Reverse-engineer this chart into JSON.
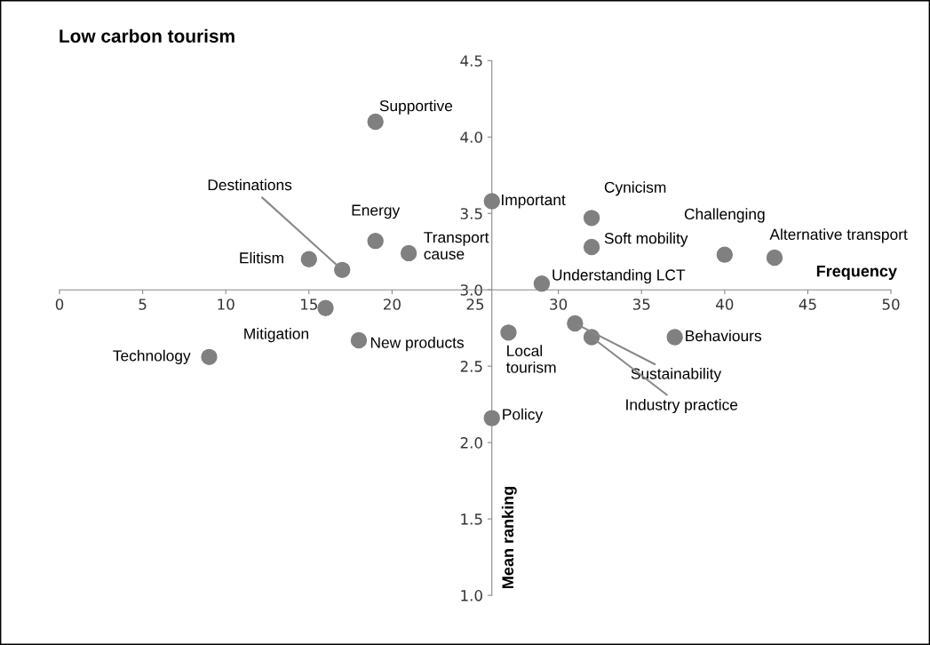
{
  "chart_data": {
    "type": "scatter",
    "title": "Low carbon tourism",
    "xlabel": "Frequency",
    "ylabel": "Mean ranking",
    "series": [
      {
        "color": "#808080",
        "x": [
          19,
          26,
          32,
          19,
          17,
          15,
          21,
          32,
          40,
          43,
          29,
          16,
          18,
          9,
          27,
          37,
          31,
          32,
          26
        ],
        "values": [
          4.1,
          3.58,
          3.47,
          3.32,
          3.13,
          3.2,
          3.24,
          3.28,
          3.23,
          3.21,
          3.04,
          2.88,
          2.67,
          2.56,
          2.72,
          2.69,
          2.78,
          2.69,
          2.16
        ]
      }
    ],
    "annotations": [
      {
        "text": "Supportive",
        "x": 19,
        "y": 4.1
      },
      {
        "text": "Important",
        "x": 26,
        "y": 3.58
      },
      {
        "text": "Cynicism",
        "x": 32,
        "y": 3.47
      },
      {
        "text": "Energy",
        "x": 19,
        "y": 3.32
      },
      {
        "text": "Destinations",
        "x": 17,
        "y": 3.13
      },
      {
        "text": "Elitism",
        "x": 15,
        "y": 3.2
      },
      {
        "text": "Transport\ncause",
        "x": 21,
        "y": 3.24
      },
      {
        "text": "Soft mobility",
        "x": 32,
        "y": 3.28
      },
      {
        "text": "Challenging",
        "x": 40,
        "y": 3.23
      },
      {
        "text": "Alternative transport",
        "x": 43,
        "y": 3.21
      },
      {
        "text": "Understanding LCT",
        "x": 29,
        "y": 3.04
      },
      {
        "text": "Mitigation",
        "x": 16,
        "y": 2.88
      },
      {
        "text": "New products",
        "x": 18,
        "y": 2.67
      },
      {
        "text": "Technology",
        "x": 9,
        "y": 2.56
      },
      {
        "text": "Local\ntourism",
        "x": 27,
        "y": 2.72
      },
      {
        "text": "Behaviours",
        "x": 37,
        "y": 2.69
      },
      {
        "text": "Sustainability",
        "x": 31,
        "y": 2.78
      },
      {
        "text": "Industry practice",
        "x": 32,
        "y": 2.69
      },
      {
        "text": "Policy",
        "x": 26,
        "y": 2.16
      }
    ],
    "xlim": [
      0,
      50
    ],
    "xticks": [
      0,
      5,
      10,
      15,
      20,
      25,
      30,
      35,
      40,
      45,
      50
    ],
    "ylim": [
      1.0,
      4.5
    ],
    "yticks": [
      {
        "value": 1.0,
        "label": "1.0"
      },
      {
        "value": 1.5,
        "label": "1.5"
      },
      {
        "value": 2.0,
        "label": "2.0"
      },
      {
        "value": 2.5,
        "label": "2.5"
      },
      {
        "value": 3.0,
        "label": "3.0"
      },
      {
        "value": 3.5,
        "label": "3.5"
      },
      {
        "value": 4.0,
        "label": "4.0"
      },
      {
        "value": 4.5,
        "label": "4.5"
      }
    ],
    "marker": "circle",
    "grid": false,
    "legend": false
  }
}
